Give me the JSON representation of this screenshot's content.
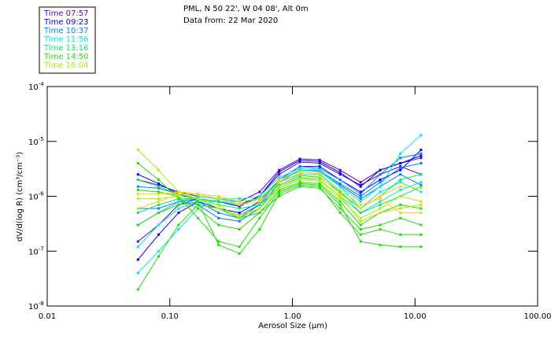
{
  "header": {
    "title": "PML, N 50 22', W 04 08', Alt 0m",
    "subtitle": "Data from: 22 Mar 2020"
  },
  "legend": [
    {
      "label": "Time 07:57",
      "color": "#5a00c0"
    },
    {
      "label": "Time 09:23",
      "color": "#0000ff"
    },
    {
      "label": "Time 10:37",
      "color": "#0080ff"
    },
    {
      "label": "Time 11:56",
      "color": "#00e8e8"
    },
    {
      "label": "Time 13:16",
      "color": "#00f060"
    },
    {
      "label": "Time 14:50",
      "color": "#20e000"
    },
    {
      "label": "Time 16:04",
      "color": "#a8f000"
    }
  ],
  "chart_data": {
    "type": "line",
    "xlabel": "Aerosol Size (μm)",
    "ylabel": "dV/d(log R) (cm³/cm⁻³)",
    "xscale": "log",
    "yscale": "log",
    "xlim": [
      0.01,
      100
    ],
    "ylim": [
      1e-08,
      0.0001
    ],
    "xticks": [
      "0.01",
      "0.10",
      "1.00",
      "10.00",
      "100.00"
    ],
    "yticks": [
      {
        "base": "10",
        "exp": "-4"
      },
      {
        "base": "10",
        "exp": "-5"
      },
      {
        "base": "10",
        "exp": "-6"
      },
      {
        "base": "10",
        "exp": "-7"
      },
      {
        "base": "10",
        "exp": "-8"
      }
    ],
    "x": [
      0.055,
      0.081,
      0.118,
      0.17,
      0.25,
      0.37,
      0.54,
      0.78,
      1.15,
      1.67,
      2.45,
      3.6,
      5.2,
      7.6,
      11.2
    ],
    "series": [
      {
        "color": "#5a00c0",
        "values": [
          2e-06,
          1.6e-06,
          1.2e-06,
          1e-06,
          9e-07,
          8e-07,
          1.2e-06,
          3e-06,
          4.8e-06,
          4.6e-06,
          3e-06,
          1.8e-06,
          3e-06,
          4e-06,
          5e-06
        ]
      },
      {
        "color": "#5a00c0",
        "values": [
          1.5e-07,
          3e-07,
          7e-07,
          9e-07,
          8e-07,
          7e-07,
          1e-06,
          2.5e-06,
          4.2e-06,
          4e-06,
          2.5e-06,
          1.6e-06,
          2.5e-06,
          3.5e-06,
          2.5e-06
        ]
      },
      {
        "color": "#0000ff",
        "values": [
          2.5e-06,
          1.7e-06,
          1.1e-06,
          9e-07,
          8e-07,
          6.5e-07,
          1e-06,
          2.8e-06,
          4.5e-06,
          4.3e-06,
          2.7e-06,
          1.5e-06,
          3e-06,
          4e-06,
          5.5e-06
        ]
      },
      {
        "color": "#0000ff",
        "values": [
          7e-08,
          2e-07,
          5e-07,
          8e-07,
          6e-07,
          5e-07,
          8e-07,
          2e-06,
          3.5e-06,
          3.5e-06,
          2e-06,
          1.2e-06,
          2e-06,
          3e-06,
          7e-06
        ]
      },
      {
        "color": "#0080ff",
        "values": [
          1.5e-06,
          1.4e-06,
          1.1e-06,
          8e-07,
          5e-07,
          4e-07,
          7e-07,
          2e-06,
          3.5e-06,
          3.2e-06,
          2e-06,
          1.1e-06,
          2.5e-06,
          5e-06,
          6e-06
        ]
      },
      {
        "color": "#0080ff",
        "values": [
          6e-07,
          6e-07,
          8e-07,
          7e-07,
          4e-07,
          3.5e-07,
          6e-07,
          1.8e-06,
          3e-06,
          2.8e-06,
          1.6e-06,
          9e-07,
          1.5e-06,
          2.5e-06,
          1.6e-06
        ]
      },
      {
        "color": "#0080ff",
        "values": [
          3e-07,
          5e-07,
          8e-07,
          9e-07,
          6e-07,
          4.5e-07,
          7e-07,
          2e-06,
          3e-06,
          2.9e-06,
          1.7e-06,
          1e-06,
          1.8e-06,
          3.3e-06,
          4e-06
        ]
      },
      {
        "color": "#00e8e8",
        "values": [
          4e-08,
          1e-07,
          2.5e-07,
          6e-07,
          9e-07,
          8e-07,
          9e-07,
          2e-06,
          3e-06,
          2.8e-06,
          1.5e-06,
          8e-07,
          1.5e-06,
          6e-06,
          1.3e-05
        ]
      },
      {
        "color": "#00e8e8",
        "values": [
          3e-07,
          5e-07,
          8e-07,
          1e-06,
          9e-07,
          9e-07,
          1e-06,
          2.2e-06,
          3.2e-06,
          3e-06,
          1.5e-06,
          6e-07,
          1.2e-06,
          1.8e-06,
          1.2e-06
        ]
      },
      {
        "color": "#00e8e8",
        "values": [
          1.2e-07,
          3e-07,
          6e-07,
          8e-07,
          8e-07,
          7e-07,
          9e-07,
          1.8e-06,
          2.6e-06,
          2.5e-06,
          1.2e-06,
          5e-07,
          8e-07,
          1.3e-06,
          1.8e-06
        ]
      },
      {
        "color": "#00f060",
        "values": [
          5e-07,
          7e-07,
          9e-07,
          9e-07,
          8e-07,
          8e-07,
          9e-07,
          1.6e-06,
          2.4e-06,
          2.2e-06,
          1.2e-06,
          6e-07,
          1e-06,
          2e-06,
          2.5e-06
        ]
      },
      {
        "color": "#00f060",
        "values": [
          2e-06,
          1.5e-06,
          1.1e-06,
          9e-07,
          7e-07,
          6e-07,
          7e-07,
          1.5e-06,
          2.2e-06,
          2e-06,
          1e-06,
          5e-07,
          7e-07,
          1e-06,
          1.5e-06
        ]
      },
      {
        "color": "#20e000",
        "values": [
          1.3e-06,
          1.2e-06,
          1e-06,
          4e-07,
          1.5e-07,
          1.2e-07,
          4e-07,
          1.2e-06,
          1.7e-06,
          1.6e-06,
          7e-07,
          1.5e-07,
          1.3e-07,
          1.2e-07,
          1.2e-07
        ]
      },
      {
        "color": "#20e000",
        "values": [
          4e-06,
          2e-06,
          9e-07,
          6e-07,
          3e-07,
          2.5e-07,
          5e-07,
          1e-06,
          1.5e-06,
          1.4e-06,
          6e-07,
          2.5e-07,
          3e-07,
          4e-07,
          3e-07
        ]
      },
      {
        "color": "#20e000",
        "values": [
          2e-08,
          8e-08,
          3e-07,
          7e-07,
          6e-07,
          4e-07,
          5e-07,
          1.3e-06,
          1.8e-06,
          1.7e-06,
          8e-07,
          3e-07,
          5e-07,
          7e-07,
          6e-07
        ]
      },
      {
        "color": "#20e000",
        "values": [
          3e-07,
          5e-07,
          7e-07,
          8e-07,
          1.3e-07,
          9e-08,
          2.5e-07,
          1.1e-06,
          1.6e-06,
          1.5e-06,
          5e-07,
          2e-07,
          2.5e-07,
          2e-07,
          2e-07
        ]
      },
      {
        "color": "#a8f000",
        "values": [
          7e-06,
          3e-06,
          1.2e-06,
          9e-07,
          6e-07,
          4.5e-07,
          6e-07,
          1.4e-06,
          2e-06,
          1.9e-06,
          9e-07,
          4e-07,
          6e-07,
          1e-06,
          8e-07
        ]
      },
      {
        "color": "#a8f000",
        "values": [
          9e-07,
          9e-07,
          1e-06,
          9e-07,
          7e-07,
          4e-07,
          6e-07,
          1.5e-06,
          2.1e-06,
          2e-06,
          1e-06,
          3.5e-07,
          5e-07,
          6e-07,
          7e-07
        ]
      },
      {
        "color": "#ffd000",
        "values": [
          1.1e-06,
          1.1e-06,
          1.2e-06,
          1.1e-06,
          9e-07,
          7e-07,
          8e-07,
          1.8e-06,
          2.5e-06,
          2.3e-06,
          1.1e-06,
          6e-07,
          1e-06,
          1.5e-06,
          1.4e-06
        ]
      },
      {
        "color": "#ffd000",
        "values": [
          6e-07,
          8e-07,
          1.1e-06,
          1.1e-06,
          1e-06,
          8e-07,
          9e-07,
          2e-06,
          2.8e-06,
          2.6e-06,
          1.3e-06,
          7e-07,
          9e-07,
          5e-07,
          5e-07
        ]
      }
    ]
  }
}
